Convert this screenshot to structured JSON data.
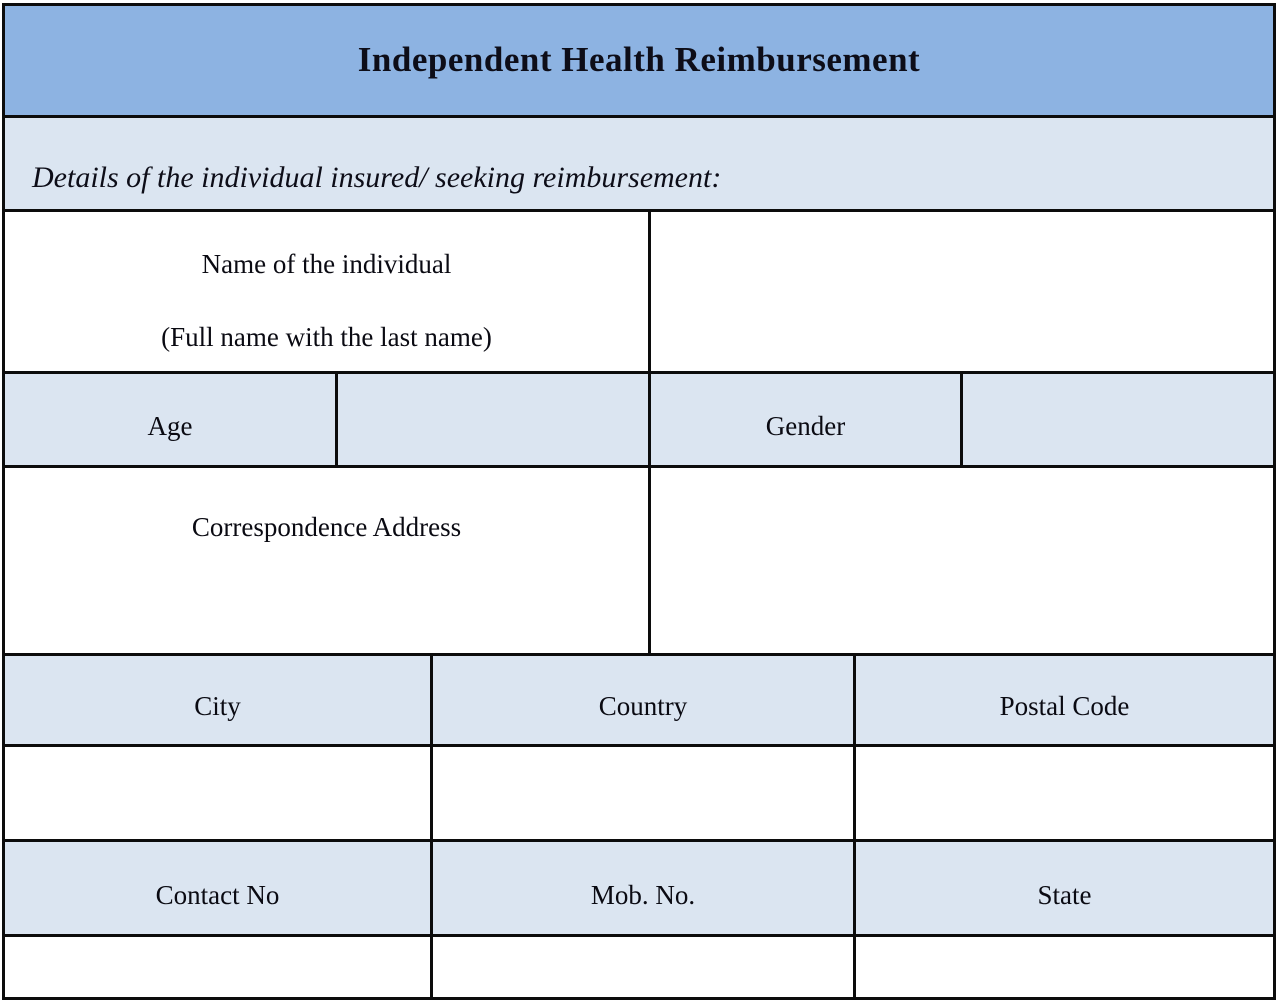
{
  "header": {
    "title": "Independent Health Reimbursement"
  },
  "section": {
    "heading": "Details of the individual insured/ seeking reimbursement:"
  },
  "fields": {
    "name": {
      "label": "Name of the individual",
      "sublabel": "(Full name with the last name)",
      "value": ""
    },
    "age": {
      "label": "Age",
      "value": ""
    },
    "gender": {
      "label": "Gender",
      "value": ""
    },
    "address": {
      "label": "Correspondence Address",
      "value": ""
    },
    "city": {
      "label": "City",
      "value": ""
    },
    "country": {
      "label": "Country",
      "value": ""
    },
    "postal_code": {
      "label": "Postal Code",
      "value": ""
    },
    "contact_no": {
      "label": "Contact No",
      "value": ""
    },
    "mob_no": {
      "label": "Mob. No.",
      "value": ""
    },
    "state": {
      "label": "State",
      "value": ""
    }
  },
  "colors": {
    "header_bg": "#8DB3E2",
    "band_bg": "#DBE5F1",
    "border": "#0C0C0C",
    "page_bg": "#FFFFFF",
    "text": "#0A0A12"
  }
}
